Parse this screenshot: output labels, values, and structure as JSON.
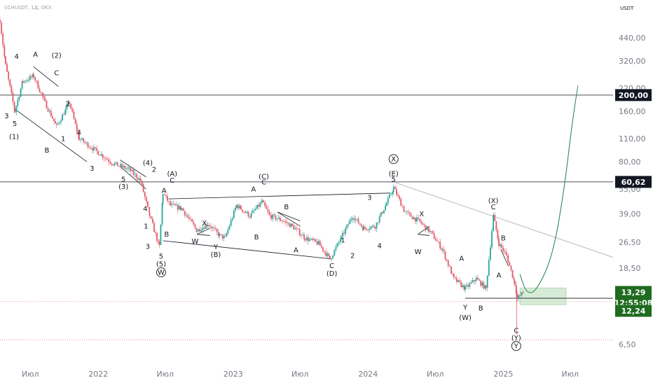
{
  "header": {
    "symbol": "SCHUSDT, 1Д, OKX",
    "currency": "USDT"
  },
  "colors": {
    "up": "#26a69a",
    "down": "#e05a6a",
    "projection": "#2e8b57",
    "current_tag": "#1f6b1f",
    "level_tag": "#131722",
    "level_line": "#131722",
    "dotted_line": "#e57373",
    "trendline": "#b0b3b8",
    "zone_fill": "#c8e6c9"
  },
  "chart_data": {
    "type": "candlestick",
    "scale": "log",
    "ylim": [
      5.2,
      610
    ],
    "x_range": [
      "2021-04-10",
      "2025-10-25"
    ],
    "y_ticks": [
      "440,00",
      "320,00",
      "220,00",
      "160,00",
      "110,00",
      "80,00",
      "55,00",
      "39,00",
      "26,50",
      "18,50",
      "13,29",
      "6,50"
    ],
    "x_ticks": [
      {
        "date": "2021-07-01",
        "label": "Июл"
      },
      {
        "date": "2022-01-01",
        "label": "2022"
      },
      {
        "date": "2022-07-01",
        "label": "Июл"
      },
      {
        "date": "2023-01-01",
        "label": "2023"
      },
      {
        "date": "2023-07-01",
        "label": "Июл"
      },
      {
        "date": "2024-01-01",
        "label": "2024"
      },
      {
        "date": "2024-07-01",
        "label": "Июл"
      },
      {
        "date": "2025-01-01",
        "label": "2025"
      },
      {
        "date": "2025-07-01",
        "label": "Июл"
      }
    ],
    "price_path": [
      {
        "date": "2021-04-10",
        "price": 560
      },
      {
        "date": "2021-04-25",
        "price": 300
      },
      {
        "date": "2021-05-20",
        "price": 160
      },
      {
        "date": "2021-06-10",
        "price": 240
      },
      {
        "date": "2021-07-10",
        "price": 260
      },
      {
        "date": "2021-08-10",
        "price": 180
      },
      {
        "date": "2021-09-10",
        "price": 130
      },
      {
        "date": "2021-10-15",
        "price": 180
      },
      {
        "date": "2021-11-10",
        "price": 110
      },
      {
        "date": "2021-12-20",
        "price": 95
      },
      {
        "date": "2022-02-10",
        "price": 78
      },
      {
        "date": "2022-03-25",
        "price": 72
      },
      {
        "date": "2022-04-25",
        "price": 62
      },
      {
        "date": "2022-05-20",
        "price": 38
      },
      {
        "date": "2022-06-15",
        "price": 25
      },
      {
        "date": "2022-06-25",
        "price": 52
      },
      {
        "date": "2022-07-15",
        "price": 44
      },
      {
        "date": "2022-08-15",
        "price": 42
      },
      {
        "date": "2022-09-25",
        "price": 31
      },
      {
        "date": "2022-10-25",
        "price": 34
      },
      {
        "date": "2022-11-25",
        "price": 29
      },
      {
        "date": "2022-12-10",
        "price": 28
      },
      {
        "date": "2023-01-10",
        "price": 44
      },
      {
        "date": "2023-02-15",
        "price": 38
      },
      {
        "date": "2023-03-20",
        "price": 46
      },
      {
        "date": "2023-04-10",
        "price": 38
      },
      {
        "date": "2023-05-10",
        "price": 36
      },
      {
        "date": "2023-06-10",
        "price": 33
      },
      {
        "date": "2023-07-15",
        "price": 28
      },
      {
        "date": "2023-08-20",
        "price": 26
      },
      {
        "date": "2023-09-20",
        "price": 21
      },
      {
        "date": "2023-10-20",
        "price": 28
      },
      {
        "date": "2023-11-20",
        "price": 38
      },
      {
        "date": "2023-12-20",
        "price": 32
      },
      {
        "date": "2024-01-20",
        "price": 33
      },
      {
        "date": "2024-02-20",
        "price": 45
      },
      {
        "date": "2024-03-10",
        "price": 56
      },
      {
        "date": "2024-04-10",
        "price": 40
      },
      {
        "date": "2024-05-20",
        "price": 35
      },
      {
        "date": "2024-06-20",
        "price": 30
      },
      {
        "date": "2024-07-20",
        "price": 24
      },
      {
        "date": "2024-08-20",
        "price": 16
      },
      {
        "date": "2024-09-20",
        "price": 14
      },
      {
        "date": "2024-10-20",
        "price": 16
      },
      {
        "date": "2024-11-15",
        "price": 14
      },
      {
        "date": "2024-12-05",
        "price": 38
      },
      {
        "date": "2024-12-20",
        "price": 26
      },
      {
        "date": "2025-01-10",
        "price": 22
      },
      {
        "date": "2025-02-01",
        "price": 15
      },
      {
        "date": "2025-02-08",
        "price": 12.24
      },
      {
        "date": "2025-02-25",
        "price": 13.29
      }
    ],
    "levels": [
      {
        "label": "200,00",
        "price": 200
      },
      {
        "label": "60,62",
        "price": 60.62
      }
    ],
    "current_price": {
      "label": "13,29",
      "price": 13.29,
      "countdown": "12:55:08"
    },
    "support": {
      "label": "12,24",
      "price": 12.24
    },
    "projection_path": [
      {
        "date": "2025-02-15",
        "price": 17
      },
      {
        "date": "2025-03-05",
        "price": 13
      },
      {
        "date": "2025-04-01",
        "price": 13.5
      },
      {
        "date": "2025-05-15",
        "price": 22
      },
      {
        "date": "2025-06-15",
        "price": 55
      },
      {
        "date": "2025-07-05",
        "price": 130
      },
      {
        "date": "2025-07-22",
        "price": 230
      }
    ],
    "dotted_lines": [
      11.7,
      6.9
    ],
    "wave_labels": [
      {
        "date": "2021-05-25",
        "price": 340,
        "text": "4",
        "circled": false
      },
      {
        "date": "2021-07-15",
        "price": 350,
        "text": "A",
        "circled": false
      },
      {
        "date": "2021-09-10",
        "price": 345,
        "text": "(2)",
        "circled": false
      },
      {
        "date": "2021-09-10",
        "price": 272,
        "text": "C",
        "circled": false
      },
      {
        "date": "2021-10-10",
        "price": 178,
        "text": "2",
        "circled": false
      },
      {
        "date": "2021-04-28",
        "price": 150,
        "text": "3",
        "circled": false
      },
      {
        "date": "2021-05-20",
        "price": 135,
        "text": "5",
        "circled": false
      },
      {
        "date": "2021-05-18",
        "price": 113,
        "text": "(1)",
        "circled": false
      },
      {
        "date": "2021-08-15",
        "price": 94,
        "text": "B",
        "circled": false
      },
      {
        "date": "2021-09-28",
        "price": 110,
        "text": "1",
        "circled": false
      },
      {
        "date": "2021-11-10",
        "price": 120,
        "text": "4",
        "circled": false
      },
      {
        "date": "2021-12-15",
        "price": 73,
        "text": "3",
        "circled": false
      },
      {
        "date": "2022-03-10",
        "price": 63,
        "text": "5",
        "circled": false
      },
      {
        "date": "2022-03-10",
        "price": 57,
        "text": "(3)",
        "circled": false
      },
      {
        "date": "2022-05-15",
        "price": 79,
        "text": "(4)",
        "circled": false
      },
      {
        "date": "2022-06-01",
        "price": 72,
        "text": "2",
        "circled": false
      },
      {
        "date": "2022-05-08",
        "price": 42,
        "text": "4",
        "circled": false
      },
      {
        "date": "2022-05-10",
        "price": 33,
        "text": "1",
        "circled": false
      },
      {
        "date": "2022-05-15",
        "price": 25,
        "text": "3",
        "circled": false
      },
      {
        "date": "2022-06-20",
        "price": 21.8,
        "text": "5",
        "circled": false
      },
      {
        "date": "2022-06-20",
        "price": 19.6,
        "text": "(5)",
        "circled": false
      },
      {
        "date": "2022-06-20",
        "price": 17.5,
        "text": "W",
        "circled": true
      },
      {
        "date": "2022-06-28",
        "price": 54,
        "text": "A",
        "circled": false
      },
      {
        "date": "2022-07-05",
        "price": 29.5,
        "text": "B",
        "circled": false
      },
      {
        "date": "2022-07-20",
        "price": 68,
        "text": "(A)",
        "circled": false
      },
      {
        "date": "2022-07-20",
        "price": 62,
        "text": "C",
        "circled": false
      },
      {
        "date": "2022-10-15",
        "price": 34.5,
        "text": "X",
        "circled": false
      },
      {
        "date": "2022-09-20",
        "price": 26.8,
        "text": "W",
        "circled": false
      },
      {
        "date": "2022-11-15",
        "price": 24.8,
        "text": "Y",
        "circled": false
      },
      {
        "date": "2022-11-15",
        "price": 22.3,
        "text": "(B)",
        "circled": false
      },
      {
        "date": "2023-02-25",
        "price": 55,
        "text": "A",
        "circled": false
      },
      {
        "date": "2023-03-25",
        "price": 65.5,
        "text": "(C)",
        "circled": false
      },
      {
        "date": "2023-03-25",
        "price": 60.5,
        "text": "C",
        "circled": false
      },
      {
        "date": "2023-03-05",
        "price": 28.5,
        "text": "B",
        "circled": false
      },
      {
        "date": "2023-05-25",
        "price": 43,
        "text": "B",
        "circled": false
      },
      {
        "date": "2023-06-20",
        "price": 23.8,
        "text": "A",
        "circled": false
      },
      {
        "date": "2023-09-25",
        "price": 19.2,
        "text": "C",
        "circled": false
      },
      {
        "date": "2023-09-25",
        "price": 17.2,
        "text": "(D)",
        "circled": false
      },
      {
        "date": "2023-10-25",
        "price": 27.2,
        "text": "1",
        "circled": false
      },
      {
        "date": "2023-11-20",
        "price": 22,
        "text": "2",
        "circled": false
      },
      {
        "date": "2024-01-05",
        "price": 49,
        "text": "3",
        "circled": false
      },
      {
        "date": "2024-02-01",
        "price": 25.2,
        "text": "4",
        "circled": false
      },
      {
        "date": "2024-03-10",
        "price": 83,
        "text": "X",
        "circled": true
      },
      {
        "date": "2024-03-10",
        "price": 68,
        "text": "(E)",
        "circled": false
      },
      {
        "date": "2024-03-10",
        "price": 63,
        "text": "5",
        "circled": false
      },
      {
        "date": "2024-05-25",
        "price": 39,
        "text": "X",
        "circled": false
      },
      {
        "date": "2024-05-15",
        "price": 23.2,
        "text": "W",
        "circled": false
      },
      {
        "date": "2024-09-10",
        "price": 21.2,
        "text": "A",
        "circled": false
      },
      {
        "date": "2024-09-20",
        "price": 10.8,
        "text": "Y",
        "circled": false
      },
      {
        "date": "2024-09-20",
        "price": 9.4,
        "text": "(W)",
        "circled": false
      },
      {
        "date": "2024-11-01",
        "price": 10.7,
        "text": "B",
        "circled": false
      },
      {
        "date": "2024-12-05",
        "price": 47,
        "text": "(X)",
        "circled": false
      },
      {
        "date": "2024-12-05",
        "price": 43,
        "text": "C",
        "circled": false
      },
      {
        "date": "2025-01-01",
        "price": 28,
        "text": "B",
        "circled": false
      },
      {
        "date": "2024-12-20",
        "price": 16.8,
        "text": "A",
        "circled": false
      },
      {
        "date": "2025-02-05",
        "price": 7.85,
        "text": "C",
        "circled": false
      },
      {
        "date": "2025-02-05",
        "price": 7.1,
        "text": "(Y)",
        "circled": false
      },
      {
        "date": "2025-02-05",
        "price": 6.35,
        "text": "Y",
        "circled": true
      }
    ],
    "trend_lines": [
      {
        "from": {
          "date": "2021-05-20",
          "price": 165
        },
        "to": {
          "date": "2021-12-01",
          "price": 80
        }
      },
      {
        "from": {
          "date": "2021-07-10",
          "price": 295
        },
        "to": {
          "date": "2021-09-15",
          "price": 225
        }
      },
      {
        "from": {
          "date": "2022-03-01",
          "price": 75
        },
        "to": {
          "date": "2022-05-10",
          "price": 55
        }
      },
      {
        "from": {
          "date": "2022-03-01",
          "price": 82
        },
        "to": {
          "date": "2022-05-10",
          "price": 65
        }
      },
      {
        "from": {
          "date": "2022-07-10",
          "price": 48
        },
        "to": {
          "date": "2024-03-01",
          "price": 52
        }
      },
      {
        "from": {
          "date": "2022-06-25",
          "price": 27
        },
        "to": {
          "date": "2023-09-25",
          "price": 21
        }
      },
      {
        "from": {
          "date": "2022-09-25",
          "price": 29.5
        },
        "to": {
          "date": "2022-10-30",
          "price": 32
        }
      },
      {
        "from": {
          "date": "2022-09-25",
          "price": 29.5
        },
        "to": {
          "date": "2022-10-30",
          "price": 29
        }
      },
      {
        "from": {
          "date": "2023-05-01",
          "price": 40
        },
        "to": {
          "date": "2023-07-01",
          "price": 33
        }
      },
      {
        "from": {
          "date": "2023-05-01",
          "price": 40
        },
        "to": {
          "date": "2023-07-01",
          "price": 35.5
        }
      },
      {
        "from": {
          "date": "2024-05-15",
          "price": 29.5
        },
        "to": {
          "date": "2024-06-15",
          "price": 33
        }
      },
      {
        "from": {
          "date": "2024-05-15",
          "price": 29.5
        },
        "to": {
          "date": "2024-06-15",
          "price": 29
        }
      },
      {
        "from": {
          "date": "2024-12-25",
          "price": 24
        },
        "to": {
          "date": "2025-01-15",
          "price": 19
        }
      }
    ],
    "descending_trendline": {
      "from": {
        "date": "2024-03-15",
        "price": 60
      },
      "to": {
        "date": "2025-10-25",
        "price": 21.5
      }
    },
    "target_zone": {
      "from": "2025-02-15",
      "to": "2025-06-20",
      "low": 11.2,
      "high": 14.1
    },
    "grid": false,
    "legend": "none"
  }
}
